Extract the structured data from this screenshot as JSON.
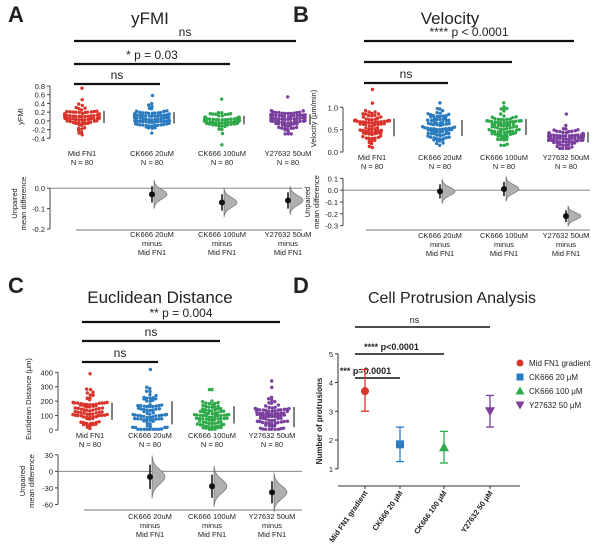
{
  "figure": {
    "title": "Multi-panel figure: yFMI, Velocity, Euclidean Distance, Cell Protrusion Analysis"
  },
  "colors": {
    "red": "#d9342b",
    "blue": "#2b7bbf",
    "green": "#2fa94a",
    "purple": "#7b3f9e",
    "axis": "#333333",
    "delta_fill": "#b0b0b0"
  },
  "chart_data": [
    {
      "type": "scatter",
      "panel": "A",
      "title": "yFMI",
      "ylabel": "yFMI",
      "ylim": [
        -0.6,
        0.8
      ],
      "yticks": [
        -0.4,
        -0.2,
        0.0,
        0.2,
        0.4,
        0.6,
        0.8
      ],
      "ytick_labels": [
        "-0.4",
        "-0.2",
        "0.0",
        "0.2",
        "0.4",
        "0.6",
        "0.8"
      ],
      "groups": [
        {
          "name": "Mid FN1",
          "n_label": "N = 80",
          "mean": 0.09,
          "sd": 0.14,
          "max": 0.75,
          "min": -0.32,
          "color": "red"
        },
        {
          "name": "CK666 20uM",
          "n_label": "N = 80",
          "mean": 0.07,
          "sd": 0.13,
          "max": 0.58,
          "min": -0.28,
          "color": "blue"
        },
        {
          "name": "CK666 100uM",
          "n_label": "N = 80",
          "mean": 0.02,
          "sd": 0.1,
          "max": 0.5,
          "min": -0.55,
          "color": "green"
        },
        {
          "name": "Y27632 50uM",
          "n_label": "N = 80",
          "mean": 0.03,
          "sd": 0.12,
          "max": 0.55,
          "min": -0.3,
          "color": "purple"
        }
      ],
      "brackets": [
        {
          "from": 0,
          "to": 3,
          "label": "ns"
        },
        {
          "from": 0,
          "to": 2,
          "label": "* p = 0.03"
        },
        {
          "from": 0,
          "to": 1,
          "label": "ns"
        }
      ],
      "delta": {
        "ylabel": "Unpaired mean difference",
        "ylim": [
          -0.2,
          0.05
        ],
        "yticks": [
          0.0,
          -0.1,
          -0.2
        ],
        "ytick_labels": [
          "0.0",
          "-0.1",
          "-0.2"
        ],
        "labels": [
          "CK666 20uM minus Mid FN1",
          "CK666 100uM minus Mid FN1",
          "Y27632 50uM minus Mid FN1"
        ],
        "values": [
          -0.03,
          -0.07,
          -0.06
        ],
        "ci_low": [
          -0.07,
          -0.11,
          -0.1
        ],
        "ci_high": [
          0.01,
          -0.03,
          -0.02
        ]
      }
    },
    {
      "type": "scatter",
      "panel": "B",
      "title": "Velocity",
      "ylabel": "Velocity (μm/min)",
      "ylim": [
        0.0,
        1.5
      ],
      "yticks": [
        0.0,
        0.5,
        1.0
      ],
      "ytick_labels": [
        "0.0",
        "0.5",
        "1.0"
      ],
      "groups": [
        {
          "name": "Mid FN1",
          "n_label": "N = 80",
          "mean": 0.55,
          "sd": 0.2,
          "max": 1.4,
          "min": 0.1,
          "color": "red"
        },
        {
          "name": "CK666 20uM",
          "n_label": "N = 80",
          "mean": 0.54,
          "sd": 0.18,
          "max": 1.1,
          "min": 0.15,
          "color": "blue"
        },
        {
          "name": "CK666 100uM",
          "n_label": "N = 80",
          "mean": 0.56,
          "sd": 0.18,
          "max": 1.1,
          "min": 0.15,
          "color": "green"
        },
        {
          "name": "Y27632 50uM",
          "n_label": "N = 80",
          "mean": 0.33,
          "sd": 0.12,
          "max": 0.85,
          "min": 0.08,
          "color": "purple"
        }
      ],
      "brackets": [
        {
          "from": 0,
          "to": 3,
          "label": "**** p < 0.0001"
        },
        {
          "from": 0,
          "to": 2,
          "label": ""
        },
        {
          "from": 0,
          "to": 1,
          "label": "ns"
        }
      ],
      "delta": {
        "ylabel": "Unpaired mean difference",
        "ylim": [
          -0.32,
          0.12
        ],
        "yticks": [
          0.1,
          0.0,
          -0.1,
          -0.2,
          -0.3
        ],
        "ytick_labels": [
          "0.1",
          "0.0",
          "-0.1",
          "-0.2",
          "-0.3"
        ],
        "labels": [
          "CK666 20uM minus Mid FN1",
          "CK666 100uM minus Mid FN1",
          "Y27632 50uM minus Mid FN1"
        ],
        "values": [
          -0.01,
          0.01,
          -0.22
        ],
        "ci_low": [
          -0.07,
          -0.05,
          -0.27
        ],
        "ci_high": [
          0.05,
          0.07,
          -0.17
        ]
      }
    },
    {
      "type": "scatter",
      "panel": "C",
      "title": "Euclidean Distance",
      "ylabel": "Euclidean Distance (μm)",
      "ylim": [
        0,
        430
      ],
      "yticks": [
        0,
        100,
        200,
        300,
        400
      ],
      "ytick_labels": [
        "0",
        "100",
        "200",
        "300",
        "400"
      ],
      "groups": [
        {
          "name": "Mid FN1",
          "n_label": "N = 80",
          "mean": 130,
          "sd": 60,
          "max": 390,
          "min": 10,
          "color": "red"
        },
        {
          "name": "CK666 20uM",
          "n_label": "N = 80",
          "mean": 120,
          "sd": 80,
          "max": 420,
          "min": 5,
          "color": "blue"
        },
        {
          "name": "CK666 100uM",
          "n_label": "N = 80",
          "mean": 105,
          "sd": 60,
          "max": 280,
          "min": 5,
          "color": "green"
        },
        {
          "name": "Y27632 50uM",
          "n_label": "N = 80",
          "mean": 90,
          "sd": 70,
          "max": 340,
          "min": 5,
          "color": "purple"
        }
      ],
      "brackets": [
        {
          "from": 0,
          "to": 3,
          "label": "** p = 0.004"
        },
        {
          "from": 0,
          "to": 2,
          "label": "ns"
        },
        {
          "from": 0,
          "to": 1,
          "label": "ns"
        }
      ],
      "delta": {
        "ylabel": "Unpaired mean difference",
        "ylim": [
          -70,
          35
        ],
        "yticks": [
          30,
          0,
          -30,
          -60
        ],
        "ytick_labels": [
          "30",
          "0",
          "-30",
          "-60"
        ],
        "labels": [
          "CK666 20uM minus Mid FN1",
          "CK666 100uM minus Mid FN1",
          "Y27632 50uM minus Mid FN1"
        ],
        "values": [
          -10,
          -27,
          -38
        ],
        "ci_low": [
          -32,
          -48,
          -58
        ],
        "ci_high": [
          12,
          -6,
          -18
        ]
      }
    },
    {
      "type": "scatter",
      "panel": "D",
      "title": "Cell Protrusion Analysis",
      "ylabel": "Number of protrusions",
      "ylim": [
        0.4,
        5.2
      ],
      "yticks": [
        1,
        2,
        3,
        4,
        5
      ],
      "ytick_labels": [
        "1",
        "2",
        "3",
        "4",
        "5"
      ],
      "categories": [
        "Mid FN1 gradient",
        "CK666 20 μM",
        "CK666 100 μM",
        "Y27632 50 μM"
      ],
      "values": [
        3.7,
        1.85,
        1.75,
        3.0
      ],
      "err_low": [
        3.0,
        1.25,
        1.2,
        2.45
      ],
      "err_high": [
        4.45,
        2.45,
        2.3,
        3.55
      ],
      "markers": [
        "circle",
        "square",
        "triangle-up",
        "triangle-down"
      ],
      "colors": [
        "red",
        "blue",
        "green",
        "purple"
      ],
      "legend": [
        "Mid FN1 gradient",
        "CK666 20 μM",
        "CK666 100 μM",
        "Y27632 50 μM"
      ],
      "legend_position": "right",
      "brackets": [
        {
          "from": 0,
          "to": 1,
          "label": "*** p=0.0001"
        },
        {
          "from": 0,
          "to": 2,
          "label": "**** p<0.0001"
        },
        {
          "from": 0,
          "to": 3,
          "label": "ns"
        }
      ]
    }
  ]
}
